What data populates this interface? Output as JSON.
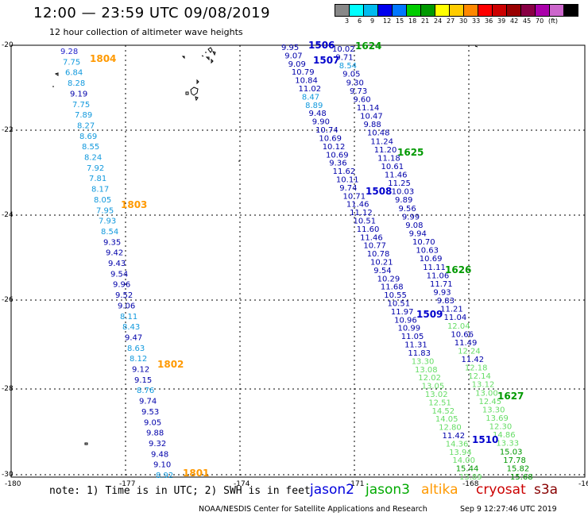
{
  "header": {
    "title": "12:00 — 23:59 UTC 09/08/2019",
    "subtitle": "12 hour collection of altimeter wave heights"
  },
  "scale": {
    "colors": [
      "#888888",
      "#00ffff",
      "#00bbee",
      "#0000ee",
      "#0077ff",
      "#00cc00",
      "#009900",
      "#ffff00",
      "#ffcc00",
      "#ff8800",
      "#ff0000",
      "#cc0000",
      "#990000",
      "#880044",
      "#aa00aa",
      "#cc66cc",
      "#000000"
    ],
    "labels": [
      "3",
      "6",
      "9",
      "12",
      "15",
      "18",
      "21",
      "24",
      "27",
      "30",
      "33",
      "36",
      "39",
      "42",
      "45",
      "70",
      "(ft)"
    ]
  },
  "axes": {
    "lat_labels": [
      "-20",
      "-22",
      "-24",
      "-26",
      "-28",
      "-30"
    ],
    "lon_labels": [
      "-180",
      "-177",
      "-174",
      "-171",
      "-168",
      "-16"
    ]
  },
  "tracks": [
    {
      "name": "1804",
      "color": "#ff9900",
      "values": [
        {
          "v": "9.28",
          "c": "#2222cc"
        },
        {
          "v": "7.75",
          "c": "#1199dd"
        },
        {
          "v": "6.84",
          "c": "#1199dd"
        },
        {
          "v": "8.28",
          "c": "#1199dd"
        },
        {
          "v": "9.19",
          "c": "#0000aa"
        },
        {
          "v": "7.75",
          "c": "#1199dd"
        },
        {
          "v": "7.89",
          "c": "#1199dd"
        },
        {
          "v": "8.27",
          "c": "#1199dd"
        },
        {
          "v": "8.69",
          "c": "#1199dd"
        },
        {
          "v": "8.55",
          "c": "#1199dd"
        },
        {
          "v": "8.24",
          "c": "#1199dd"
        },
        {
          "v": "7.92",
          "c": "#1199dd"
        },
        {
          "v": "7.81",
          "c": "#1199dd"
        },
        {
          "v": "8.17",
          "c": "#1199dd"
        },
        {
          "v": "8.05",
          "c": "#1199dd"
        },
        {
          "v": "7.95",
          "c": "#1199dd"
        },
        {
          "v": "7.93",
          "c": "#1199dd"
        },
        {
          "v": "8.54",
          "c": "#1199dd"
        },
        {
          "v": "9.35",
          "c": "#0000aa"
        },
        {
          "v": "9.42",
          "c": "#0000aa"
        },
        {
          "v": "9.43",
          "c": "#0000aa"
        },
        {
          "v": "9.54",
          "c": "#0000aa"
        },
        {
          "v": "9.96",
          "c": "#0000aa"
        },
        {
          "v": "9.52",
          "c": "#0000aa"
        },
        {
          "v": "9.06",
          "c": "#0000aa"
        },
        {
          "v": "8.11",
          "c": "#1199dd"
        },
        {
          "v": "8.43",
          "c": "#1199dd"
        },
        {
          "v": "9.47",
          "c": "#0000aa"
        },
        {
          "v": "8.63",
          "c": "#1199dd"
        },
        {
          "v": "8.12",
          "c": "#1199dd"
        },
        {
          "v": "9.12",
          "c": "#0000aa"
        },
        {
          "v": "9.15",
          "c": "#0000aa"
        },
        {
          "v": "8.76",
          "c": "#1199dd"
        },
        {
          "v": "9.74",
          "c": "#0000aa"
        },
        {
          "v": "9.53",
          "c": "#0000aa"
        },
        {
          "v": "9.05",
          "c": "#0000aa"
        },
        {
          "v": "9.88",
          "c": "#0000aa"
        },
        {
          "v": "9.32",
          "c": "#0000aa"
        },
        {
          "v": "9.48",
          "c": "#0000aa"
        },
        {
          "v": "9.10",
          "c": "#0000aa"
        },
        {
          "v": "8.92",
          "c": "#1199dd"
        }
      ]
    },
    {
      "name": "1506",
      "color": "#0000cc",
      "values": [
        {
          "v": "9.95",
          "c": "#0000aa"
        },
        {
          "v": "9.07",
          "c": "#0000aa"
        },
        {
          "v": "9.09",
          "c": "#0000aa"
        },
        {
          "v": "10.79",
          "c": "#0000aa"
        },
        {
          "v": "10.84",
          "c": "#0000aa"
        },
        {
          "v": "11.02",
          "c": "#0000aa"
        },
        {
          "v": "8.47",
          "c": "#1199dd"
        },
        {
          "v": "8.89",
          "c": "#1199dd"
        },
        {
          "v": "9.48",
          "c": "#0000aa"
        },
        {
          "v": "9.90",
          "c": "#0000aa"
        },
        {
          "v": "10.74",
          "c": "#0000aa"
        },
        {
          "v": "10.69",
          "c": "#0000aa"
        },
        {
          "v": "10.12",
          "c": "#0000aa"
        },
        {
          "v": "10.69",
          "c": "#0000aa"
        },
        {
          "v": "9.36",
          "c": "#0000aa"
        },
        {
          "v": "11.62",
          "c": "#0000aa"
        },
        {
          "v": "10.11",
          "c": "#0000aa"
        },
        {
          "v": "9.74",
          "c": "#0000aa"
        },
        {
          "v": "10.71",
          "c": "#0000aa"
        },
        {
          "v": "11.46",
          "c": "#0000aa"
        },
        {
          "v": "11.12",
          "c": "#0000aa"
        },
        {
          "v": "10.51",
          "c": "#0000aa"
        },
        {
          "v": "11.60",
          "c": "#0000aa"
        },
        {
          "v": "11.46",
          "c": "#0000aa"
        },
        {
          "v": "10.77",
          "c": "#0000aa"
        },
        {
          "v": "10.78",
          "c": "#0000aa"
        },
        {
          "v": "10.21",
          "c": "#0000aa"
        },
        {
          "v": "9.54",
          "c": "#0000aa"
        },
        {
          "v": "10.29",
          "c": "#0000aa"
        },
        {
          "v": "11.68",
          "c": "#0000aa"
        },
        {
          "v": "10.55",
          "c": "#0000aa"
        },
        {
          "v": "10.51",
          "c": "#0000aa"
        },
        {
          "v": "11.97",
          "c": "#0000aa"
        },
        {
          "v": "10.96",
          "c": "#0000aa"
        },
        {
          "v": "10.99",
          "c": "#0000aa"
        },
        {
          "v": "11.05",
          "c": "#0000aa"
        },
        {
          "v": "11.31",
          "c": "#0000aa"
        },
        {
          "v": "11.83",
          "c": "#0000aa"
        },
        {
          "v": "13.30",
          "c": "#66dd66"
        },
        {
          "v": "13.08",
          "c": "#66dd66"
        },
        {
          "v": "12.02",
          "c": "#66dd66"
        },
        {
          "v": "13.05",
          "c": "#66dd66"
        },
        {
          "v": "13.02",
          "c": "#66dd66"
        },
        {
          "v": "12.51",
          "c": "#66dd66"
        },
        {
          "v": "14.52",
          "c": "#66dd66"
        },
        {
          "v": "14.05",
          "c": "#66dd66"
        },
        {
          "v": "12.80",
          "c": "#66dd66"
        },
        {
          "v": "11.42",
          "c": "#0000aa"
        },
        {
          "v": "14.36",
          "c": "#66dd66"
        },
        {
          "v": "13.94",
          "c": "#66dd66"
        },
        {
          "v": "14.00",
          "c": "#66dd66"
        },
        {
          "v": "15.44",
          "c": "#009900"
        },
        {
          "v": "13.89",
          "c": "#66dd66"
        }
      ]
    },
    {
      "name": "1624",
      "color": "#009900",
      "values": [
        {
          "v": "10.02",
          "c": "#0000aa"
        },
        {
          "v": "9.71",
          "c": "#0000aa"
        },
        {
          "v": "8.54",
          "c": "#1199dd"
        },
        {
          "v": "9.05",
          "c": "#0000aa"
        },
        {
          "v": "9.30",
          "c": "#0000aa"
        },
        {
          "v": "9.73",
          "c": "#0000aa"
        },
        {
          "v": "9.60",
          "c": "#0000aa"
        },
        {
          "v": "11.14",
          "c": "#0000aa"
        },
        {
          "v": "10.47",
          "c": "#0000aa"
        },
        {
          "v": "9.88",
          "c": "#0000aa"
        },
        {
          "v": "10.48",
          "c": "#0000aa"
        },
        {
          "v": "11.24",
          "c": "#0000aa"
        },
        {
          "v": "11.20",
          "c": "#0000aa"
        },
        {
          "v": "11.18",
          "c": "#0000aa"
        },
        {
          "v": "10.61",
          "c": "#0000aa"
        },
        {
          "v": "11.46",
          "c": "#0000aa"
        },
        {
          "v": "11.25",
          "c": "#0000aa"
        },
        {
          "v": "10.03",
          "c": "#0000aa"
        },
        {
          "v": "9.89",
          "c": "#0000aa"
        },
        {
          "v": "9.56",
          "c": "#0000aa"
        },
        {
          "v": "9.99",
          "c": "#0000aa"
        },
        {
          "v": "9.08",
          "c": "#0000aa"
        },
        {
          "v": "9.94",
          "c": "#0000aa"
        },
        {
          "v": "10.70",
          "c": "#0000aa"
        },
        {
          "v": "10.63",
          "c": "#0000aa"
        },
        {
          "v": "10.69",
          "c": "#0000aa"
        },
        {
          "v": "11.11",
          "c": "#0000aa"
        },
        {
          "v": "11.06",
          "c": "#0000aa"
        },
        {
          "v": "11.71",
          "c": "#0000aa"
        },
        {
          "v": "9.93",
          "c": "#0000aa"
        },
        {
          "v": "9.83",
          "c": "#0000aa"
        },
        {
          "v": "11.21",
          "c": "#0000aa"
        },
        {
          "v": "11.04",
          "c": "#0000aa"
        },
        {
          "v": "12.04",
          "c": "#66dd66"
        },
        {
          "v": "10.66",
          "c": "#0000aa"
        },
        {
          "v": "11.49",
          "c": "#0000aa"
        },
        {
          "v": "12.24",
          "c": "#66dd66"
        },
        {
          "v": "11.42",
          "c": "#0000aa"
        },
        {
          "v": "12.18",
          "c": "#66dd66"
        },
        {
          "v": "12.14",
          "c": "#66dd66"
        },
        {
          "v": "13.12",
          "c": "#66dd66"
        },
        {
          "v": "13.00",
          "c": "#66dd66"
        },
        {
          "v": "12.45",
          "c": "#66dd66"
        },
        {
          "v": "13.30",
          "c": "#66dd66"
        },
        {
          "v": "13.69",
          "c": "#66dd66"
        },
        {
          "v": "12.30",
          "c": "#66dd66"
        },
        {
          "v": "14.86",
          "c": "#66dd66"
        },
        {
          "v": "13.33",
          "c": "#66dd66"
        },
        {
          "v": "15.03",
          "c": "#009900"
        },
        {
          "v": "17.78",
          "c": "#009900"
        },
        {
          "v": "15.82",
          "c": "#009900"
        },
        {
          "v": "15.68",
          "c": "#009900"
        }
      ]
    }
  ],
  "pass_labels": [
    {
      "text": "1804",
      "color": "#ff9900"
    },
    {
      "text": "1803",
      "color": "#ff9900"
    },
    {
      "text": "1802",
      "color": "#ff9900"
    },
    {
      "text": "1801",
      "color": "#ff9900"
    },
    {
      "text": "1506",
      "color": "#0000cc"
    },
    {
      "text": "1507",
      "color": "#0000cc"
    },
    {
      "text": "1508",
      "color": "#0000cc"
    },
    {
      "text": "1509",
      "color": "#0000cc"
    },
    {
      "text": "1510",
      "color": "#0000cc"
    },
    {
      "text": "1624",
      "color": "#009900"
    },
    {
      "text": "1625",
      "color": "#009900"
    },
    {
      "text": "1626",
      "color": "#009900"
    },
    {
      "text": "1627",
      "color": "#009900"
    }
  ],
  "footer": {
    "note": "note: 1) Time is in UTC; 2) SWH is in feet",
    "legend": [
      {
        "text": "jason2",
        "color": "#0000dd"
      },
      {
        "text": "jason3",
        "color": "#00aa00"
      },
      {
        "text": "altika",
        "color": "#ff9900"
      },
      {
        "text": "cryosat",
        "color": "#cc0000"
      },
      {
        "text": "s3a",
        "color": "#880000"
      }
    ],
    "credit": "NOAA/NESDIS Center for Satellite Applications and Research",
    "timestamp": "Sep  9 12:27:46 UTC 2019"
  }
}
